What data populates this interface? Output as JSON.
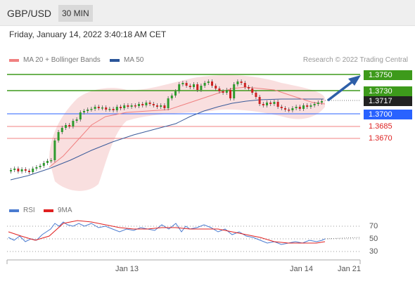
{
  "header": {
    "pair": "GBP/USD",
    "timeframe": "30 MIN"
  },
  "datetime": "Friday, January 14, 2022 3:40:18 AM CET",
  "legend": {
    "bollinger": {
      "label": "MA 20 + Bollinger Bands",
      "color": "#f08080"
    },
    "ma50": {
      "label": "MA 50",
      "color": "#2a5599"
    }
  },
  "credit": "Research © 2022 Trading Central",
  "levels": [
    {
      "value": "1.3750",
      "kind": "resistance",
      "color": "#3d9a1b"
    },
    {
      "value": "1.3730",
      "kind": "resistance",
      "color": "#3d9a1b"
    },
    {
      "value": "1.3717",
      "kind": "last-price",
      "color": "#222222"
    },
    {
      "value": "1.3700",
      "kind": "pivot",
      "color": "#2962ff"
    },
    {
      "value": "1.3685",
      "kind": "support",
      "color": "#dd2222"
    },
    {
      "value": "1.3670",
      "kind": "support",
      "color": "#dd2222"
    }
  ],
  "rsi": {
    "legend_rsi": "RSI",
    "legend_ma": "9MA",
    "rsi_color": "#4a7bd0",
    "ma_color": "#e02020",
    "ticks": [
      "70",
      "50",
      "30"
    ]
  },
  "x_axis": [
    "Jan 13",
    "Jan 14",
    "Jan 21"
  ],
  "colors": {
    "up": "#2e9b2e",
    "down": "#cc2222",
    "band": "#f8d9d9"
  },
  "icons": [
    "arrow-up-right-icon"
  ]
}
